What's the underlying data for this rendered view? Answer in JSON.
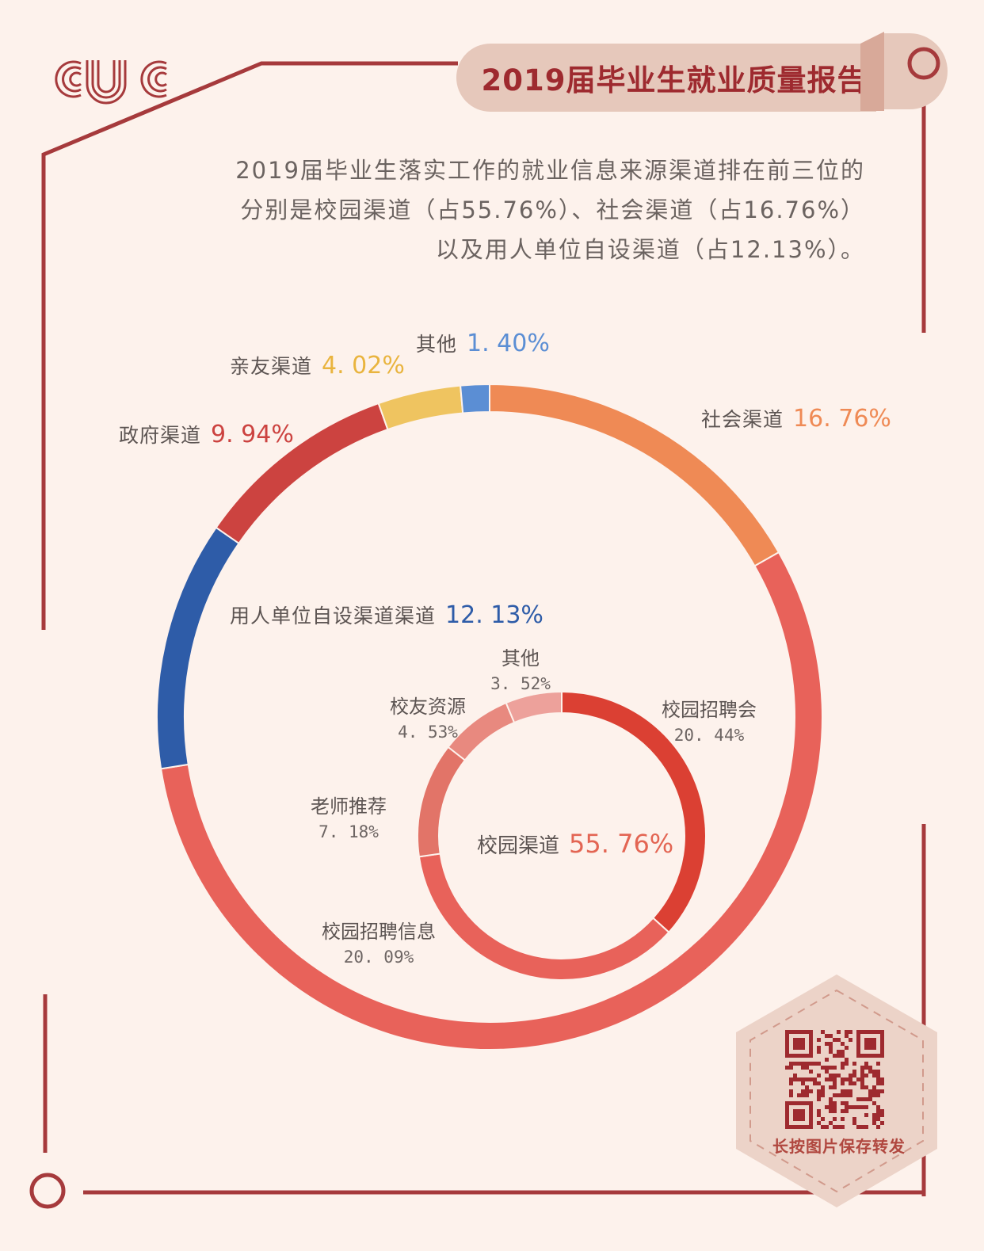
{
  "header": {
    "logo_text": "CUC",
    "title": "2019届毕业生就业质量报告"
  },
  "intro": {
    "line1": "2019届毕业生落实工作的就业信息来源渠道排在前三位的",
    "line2": "分别是校园渠道（占55.76%）、社会渠道（占16.76%）",
    "line3": "以及用人单位自设渠道（占12.13%）。"
  },
  "chart_data": [
    {
      "type": "pie",
      "variant": "donut",
      "title": "",
      "slices": [
        {
          "label": "社会渠道",
          "value": 16.76,
          "value_label": "16. 76%",
          "color": "#ef8a55"
        },
        {
          "label": "校园渠道",
          "value": 55.76,
          "value_label": "55. 76%",
          "color": "#e8625a"
        },
        {
          "label": "用人单位自设渠道渠道",
          "value": 12.13,
          "value_label": "12. 13%",
          "color": "#2e5ca8"
        },
        {
          "label": "政府渠道",
          "value": 9.94,
          "value_label": "9. 94%",
          "color": "#cc4340"
        },
        {
          "label": "亲友渠道",
          "value": 4.02,
          "value_label": "4. 02%",
          "color": "#efc460"
        },
        {
          "label": "其他",
          "value": 1.4,
          "value_label": "1. 40%",
          "color": "#5b8ed4"
        }
      ]
    },
    {
      "type": "pie",
      "variant": "donut",
      "title": "",
      "center_label": "校园渠道",
      "center_value": "55. 76%",
      "slices": [
        {
          "label": "校园招聘会",
          "value": 20.44,
          "value_label": "20. 44%",
          "color": "#db4033"
        },
        {
          "label": "校园招聘信息",
          "value": 20.09,
          "value_label": "20. 09%",
          "color": "#e8625a"
        },
        {
          "label": "老师推荐",
          "value": 7.18,
          "value_label": "7. 18%",
          "color": "#e27468"
        },
        {
          "label": "校友资源",
          "value": 4.53,
          "value_label": "4. 53%",
          "color": "#e8897f"
        },
        {
          "label": "其他",
          "value": 3.52,
          "value_label": "3. 52%",
          "color": "#eda19b"
        }
      ]
    }
  ],
  "footer": {
    "qr_caption": "长按图片保存转发"
  },
  "colors": {
    "background": "#fdf2ec",
    "frame": "#a63a3c",
    "title_text": "#9e2a2f",
    "title_tab": "#e6c8bb",
    "qr_badge": "#ecd3c8"
  }
}
